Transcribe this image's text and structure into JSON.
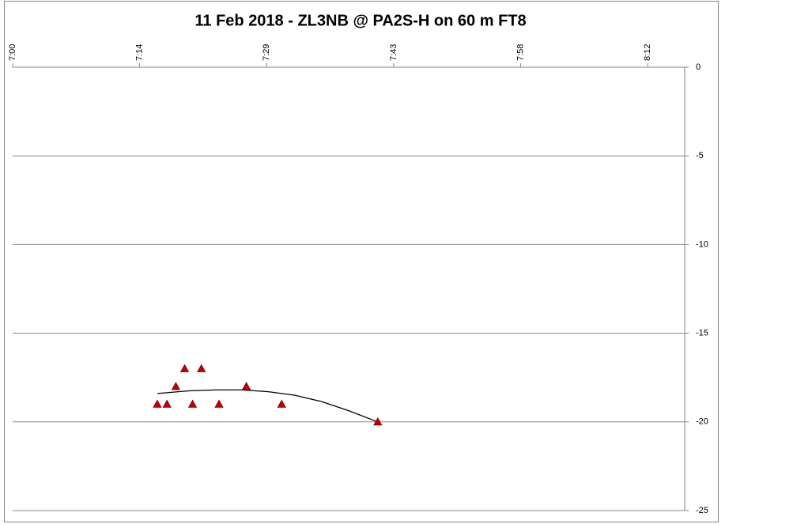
{
  "chart_data": {
    "type": "scatter",
    "title": "11 Feb 2018 - ZL3NB @ PA2S-H on 60 m FT8",
    "xlim": [
      420,
      496.2
    ],
    "xticks": [
      {
        "value": 420,
        "label": "7:00"
      },
      {
        "value": 434.4,
        "label": "7:14"
      },
      {
        "value": 448.8,
        "label": "7:29"
      },
      {
        "value": 463.2,
        "label": "7:43"
      },
      {
        "value": 477.6,
        "label": "7:58"
      },
      {
        "value": 492,
        "label": "8:12"
      }
    ],
    "ylim": [
      -25,
      0
    ],
    "yticks": [
      0,
      -5,
      -10,
      -15,
      -20,
      -25
    ],
    "grid": true,
    "series": [
      {
        "color": "#c00000",
        "x": [
          436.4,
          437.5,
          438.5,
          439.5,
          440.4,
          441.4,
          443.4,
          446.5,
          450.5,
          461.4
        ],
        "values": [
          -19,
          -19,
          -18,
          -17,
          -19,
          -17,
          -19,
          -18,
          -19,
          -20
        ]
      }
    ],
    "trendline": {
      "color": "#000000",
      "x": [
        436.4,
        440,
        443,
        446,
        449,
        452,
        455,
        458,
        461.4
      ],
      "values": [
        -18.4,
        -18.25,
        -18.2,
        -18.2,
        -18.3,
        -18.5,
        -18.85,
        -19.35,
        -20.0
      ]
    }
  }
}
